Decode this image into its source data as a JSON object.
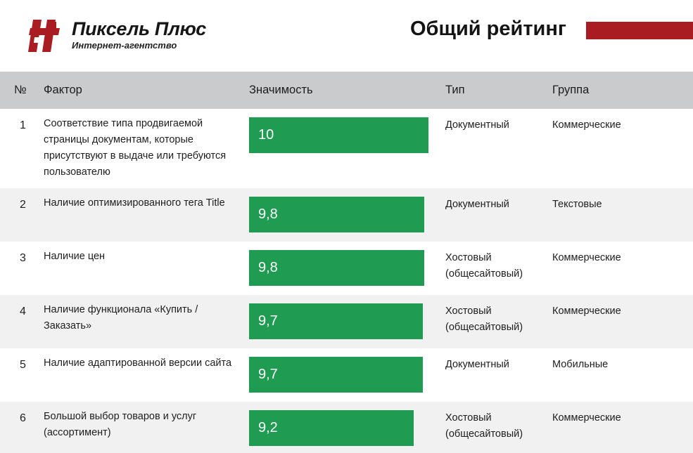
{
  "header": {
    "brand_name": "Пиксель Плюс",
    "brand_tagline": "Интернет-агентство",
    "page_title": "Общий рейтинг",
    "accent_color": "#a81c22"
  },
  "table": {
    "columns": [
      "№",
      "Фактор",
      "Значимость",
      "Тип",
      "Группа"
    ],
    "bar_color": "#1f9b52",
    "rows": [
      {
        "num": "1",
        "factor": "Соответствие типа продвигаемой страницы документам, которые присутствуют в выдаче или требуются пользователю",
        "significance": "10",
        "type": "Документный",
        "group": "Коммерческие"
      },
      {
        "num": "2",
        "factor": "Наличие оптимизированного тега Title",
        "significance": "9,8",
        "type": "Документный",
        "group": "Текстовые"
      },
      {
        "num": "3",
        "factor": "Наличие цен",
        "significance": "9,8",
        "type": "Хостовый (общесайтовый)",
        "group": "Коммерческие"
      },
      {
        "num": "4",
        "factor": "Наличие функционала «Купить / Заказать»",
        "significance": "9,7",
        "type": "Хостовый (общесайтовый)",
        "group": "Коммерческие"
      },
      {
        "num": "5",
        "factor": "Наличие адаптированной версии сайта",
        "significance": "9,7",
        "type": "Документный",
        "group": "Мобильные"
      },
      {
        "num": "6",
        "factor": "Большой выбор товаров и услуг (ассортимент)",
        "significance": "9,2",
        "type": "Хостовый (общесайтовый)",
        "group": "Коммерческие"
      }
    ]
  }
}
